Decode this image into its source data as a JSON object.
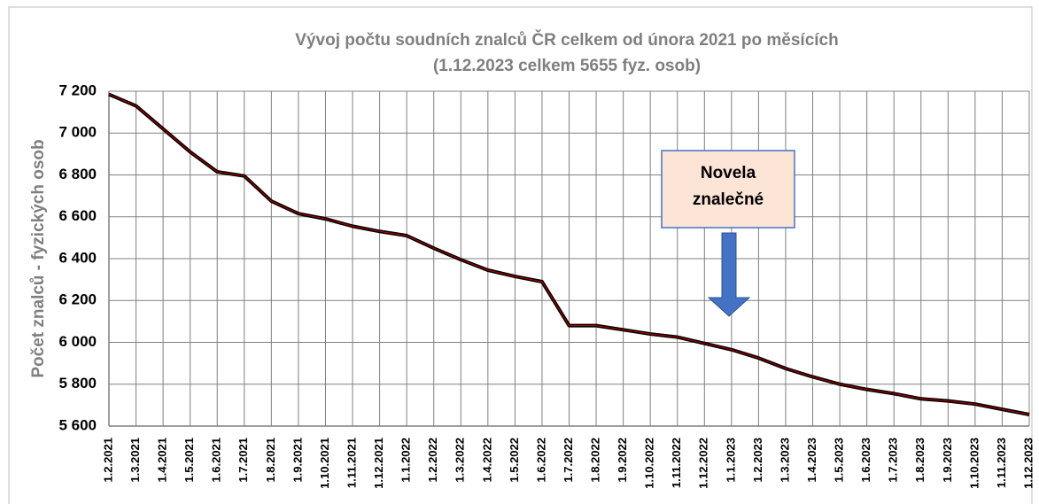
{
  "chart_data": {
    "type": "line",
    "title": "Vývoj počtu soudních znalců ČR celkem od února 2021 po měsících",
    "subtitle": "(1.12.2023 celkem 5655 fyz. osob)",
    "ylabel": "Počet znalců - fyzických osob",
    "annotation": [
      "Novela",
      "znalečné"
    ],
    "categories": [
      "1.2.2021",
      "1.3.2021",
      "1.4.2021",
      "1.5.2021",
      "1.6.2021",
      "1.7.2021",
      "1.8.2021",
      "1.9.2021",
      "1.10.2021",
      "1.11.2021",
      "1.12.2021",
      "1.1.2022",
      "1.2.2022",
      "1.3.2022",
      "1.4.2022",
      "1.5.2022",
      "1.6.2022",
      "1.7.2022",
      "1.8.2022",
      "1.9.2022",
      "1.10.2022",
      "1.11.2022",
      "1.12.2022",
      "1.1.2023",
      "1.2.2023",
      "1.3.2023",
      "1.4.2023",
      "1.5.2023",
      "1.6.2023",
      "1.7.2023",
      "1.8.2023",
      "1.9.2023",
      "1.10.2023",
      "1.11.2023",
      "1.12.2023"
    ],
    "values": [
      7185,
      7130,
      7020,
      6910,
      6815,
      6795,
      6675,
      6615,
      6590,
      6555,
      6530,
      6510,
      6450,
      6395,
      6345,
      6315,
      6290,
      6080,
      6080,
      6060,
      6040,
      6025,
      5995,
      5965,
      5925,
      5875,
      5835,
      5800,
      5775,
      5755,
      5730,
      5720,
      5705,
      5680,
      5655
    ],
    "color": "#000000",
    "ylim": [
      5600,
      7200
    ],
    "yticks": [
      {
        "value": 5600,
        "label": "5 600"
      },
      {
        "value": 5800,
        "label": "5 800"
      },
      {
        "value": 6000,
        "label": "6 000"
      },
      {
        "value": 6200,
        "label": "6 200"
      },
      {
        "value": 6400,
        "label": "6 400"
      },
      {
        "value": 6600,
        "label": "6 600"
      },
      {
        "value": 6800,
        "label": "6 800"
      },
      {
        "value": 7000,
        "label": "7 000"
      },
      {
        "value": 7200,
        "label": "7 200"
      }
    ],
    "grid": true
  }
}
